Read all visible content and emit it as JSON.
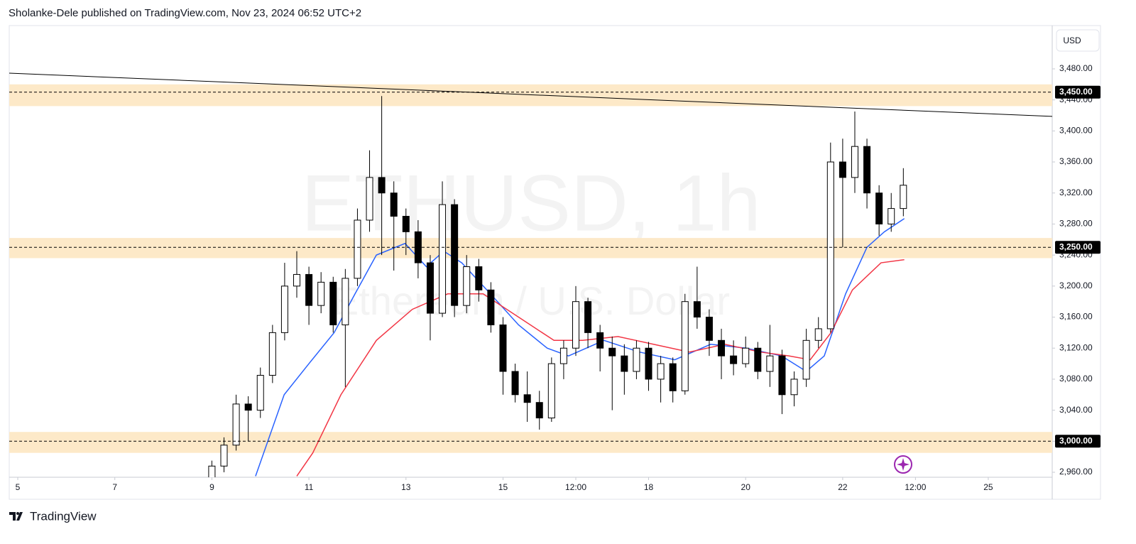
{
  "header": {
    "publisher": "Sholanke-Dele published on TradingView.com, Nov 23, 2024 06:52 UTC+2"
  },
  "chart_data": {
    "type": "candlestick",
    "title": "ETHUSD, 1h",
    "subtitle": "Ethereum / U.S. Dollar",
    "currency": "USD",
    "x": [
      9,
      9.25,
      9.5,
      9.75,
      10,
      10.25,
      10.5,
      10.75,
      11,
      11.25,
      11.5,
      11.75,
      12,
      12.25,
      12.5,
      12.75,
      13,
      13.25,
      13.5,
      13.75,
      14,
      14.25,
      14.5,
      14.75,
      15,
      15.25,
      15.5,
      15.75,
      16,
      16.25,
      16.5,
      16.75,
      17,
      17.25,
      17.5,
      17.75,
      18,
      18.25,
      18.5,
      18.75,
      19,
      19.25,
      19.5,
      19.75,
      20,
      20.25,
      20.5,
      20.75,
      21,
      21.25,
      21.5,
      21.75,
      22,
      22.25,
      22.5,
      22.75,
      23,
      23.25
    ],
    "open": [
      2950,
      2968,
      2995,
      3048,
      3040,
      3085,
      3140,
      3200,
      3215,
      3175,
      3205,
      3150,
      3210,
      3285,
      3340,
      3320,
      3290,
      3270,
      3230,
      3165,
      3305,
      3175,
      3225,
      3195,
      3150,
      3090,
      3060,
      3050,
      3030,
      3100,
      3120,
      3180,
      3140,
      3120,
      3110,
      3090,
      3120,
      3080,
      3100,
      3065,
      3180,
      3160,
      3130,
      3110,
      3100,
      3120,
      3090,
      3110,
      3060,
      3080,
      3130,
      3145,
      3360,
      3340,
      3380,
      3320,
      3280,
      3300
    ],
    "high": [
      2975,
      3005,
      3060,
      3058,
      3095,
      3150,
      3230,
      3245,
      3225,
      3218,
      3212,
      3222,
      3300,
      3375,
      3445,
      3335,
      3300,
      3285,
      3240,
      3335,
      3312,
      3240,
      3235,
      3205,
      3160,
      3100,
      3090,
      3065,
      3108,
      3130,
      3200,
      3185,
      3150,
      3135,
      3125,
      3130,
      3128,
      3110,
      3108,
      3190,
      3225,
      3170,
      3145,
      3130,
      3135,
      3128,
      3150,
      3118,
      3090,
      3145,
      3160,
      3385,
      3390,
      3425,
      3390,
      3330,
      3320,
      3352
    ],
    "low": [
      2955,
      2960,
      2988,
      3000,
      3030,
      3075,
      3130,
      3185,
      3150,
      3165,
      3140,
      3070,
      3200,
      3270,
      3240,
      3220,
      3240,
      3210,
      3130,
      3160,
      3160,
      3165,
      3180,
      3140,
      3060,
      3050,
      3025,
      3015,
      3025,
      3080,
      3110,
      3120,
      3090,
      3040,
      3060,
      3080,
      3065,
      3050,
      3050,
      3060,
      3145,
      3110,
      3080,
      3085,
      3095,
      3080,
      3070,
      3035,
      3045,
      3070,
      3120,
      3140,
      3250,
      3320,
      3300,
      3265,
      3270,
      3290
    ],
    "close": [
      2968,
      2995,
      3048,
      3040,
      3085,
      3140,
      3200,
      3215,
      3175,
      3205,
      3150,
      3210,
      3285,
      3340,
      3320,
      3290,
      3270,
      3230,
      3165,
      3305,
      3175,
      3225,
      3195,
      3150,
      3090,
      3060,
      3050,
      3030,
      3100,
      3120,
      3180,
      3140,
      3120,
      3110,
      3090,
      3120,
      3080,
      3100,
      3065,
      3180,
      3160,
      3130,
      3110,
      3100,
      3120,
      3090,
      3110,
      3060,
      3080,
      3130,
      3145,
      3360,
      3340,
      3380,
      3320,
      3280,
      3300,
      3330
    ],
    "up_color": "#ffffff",
    "down_color": "#000000",
    "border_color": "#000000",
    "moving_averages": [
      {
        "color": "#2962ff",
        "x": [
          9.9,
          10.49,
          11,
          11.52,
          11.95,
          12.39,
          12.98,
          13.42,
          13.78,
          14.15,
          14.74,
          15.32,
          15.91,
          16.35,
          17.08,
          17.81,
          18.54,
          19.28,
          20.01,
          20.74,
          21.25,
          21.62,
          22.06,
          22.5,
          22.86,
          23.27
        ],
        "values": [
          2955,
          3060,
          3100,
          3140,
          3190,
          3240,
          3255,
          3225,
          3245,
          3230,
          3190,
          3150,
          3120,
          3110,
          3130,
          3115,
          3105,
          3125,
          3120,
          3110,
          3090,
          3110,
          3190,
          3250,
          3270,
          3287
        ]
      },
      {
        "color": "#f23645",
        "x": [
          10.75,
          11.08,
          11.66,
          12.39,
          13.13,
          13.86,
          14.59,
          15.32,
          16.05,
          16.64,
          17.37,
          18.1,
          18.84,
          19.57,
          20.3,
          20.89,
          21.33,
          21.76,
          22.2,
          22.79,
          23.27
        ],
        "values": [
          2955,
          2985,
          3060,
          3130,
          3170,
          3190,
          3190,
          3160,
          3130,
          3130,
          3135,
          3125,
          3115,
          3125,
          3115,
          3110,
          3105,
          3140,
          3195,
          3230,
          3234
        ]
      }
    ],
    "trendline": {
      "color": "#000000",
      "x": [
        4.824,
        26.318
      ],
      "y": [
        3474.5,
        3418.7
      ]
    },
    "levels": [
      {
        "value": 3450,
        "label": "3,450.00",
        "zone": [
          3432,
          3460
        ]
      },
      {
        "value": 3250,
        "label": "3,250.00",
        "zone": [
          3236,
          3262
        ]
      },
      {
        "value": 3000,
        "label": "3,000.00",
        "zone": [
          2985,
          3012
        ]
      }
    ],
    "zone_color": "#fde9c8",
    "xlim": [
      4.824,
      26.318
    ],
    "xticks": [
      5,
      7,
      9,
      11,
      13,
      15,
      {
        "value": 16.5,
        "label": "12:00"
      },
      18,
      20,
      22,
      {
        "value": 23.5,
        "label": "12:00"
      },
      25
    ],
    "ylim": [
      2953.6,
      3535.8
    ],
    "yticks": [
      {
        "value": 2960,
        "label": "2,960.00"
      },
      {
        "value": 3000,
        "label": "3,000.00"
      },
      {
        "value": 3040,
        "label": "3,040.00"
      },
      {
        "value": 3080,
        "label": "3,080.00"
      },
      {
        "value": 3120,
        "label": "3,120.00"
      },
      {
        "value": 3160,
        "label": "3,160.00"
      },
      {
        "value": 3200,
        "label": "3,200.00"
      },
      {
        "value": 3240,
        "label": "3,240.00"
      },
      {
        "value": 3280,
        "label": "3,280.00"
      },
      {
        "value": 3320,
        "label": "3,320.00"
      },
      {
        "value": 3360,
        "label": "3,360.00"
      },
      {
        "value": 3400,
        "label": "3,400.00"
      },
      {
        "value": 3440,
        "label": "3,440.00"
      },
      {
        "value": 3480,
        "label": "3,480.00"
      }
    ]
  },
  "footer": {
    "brand": "TradingView"
  }
}
